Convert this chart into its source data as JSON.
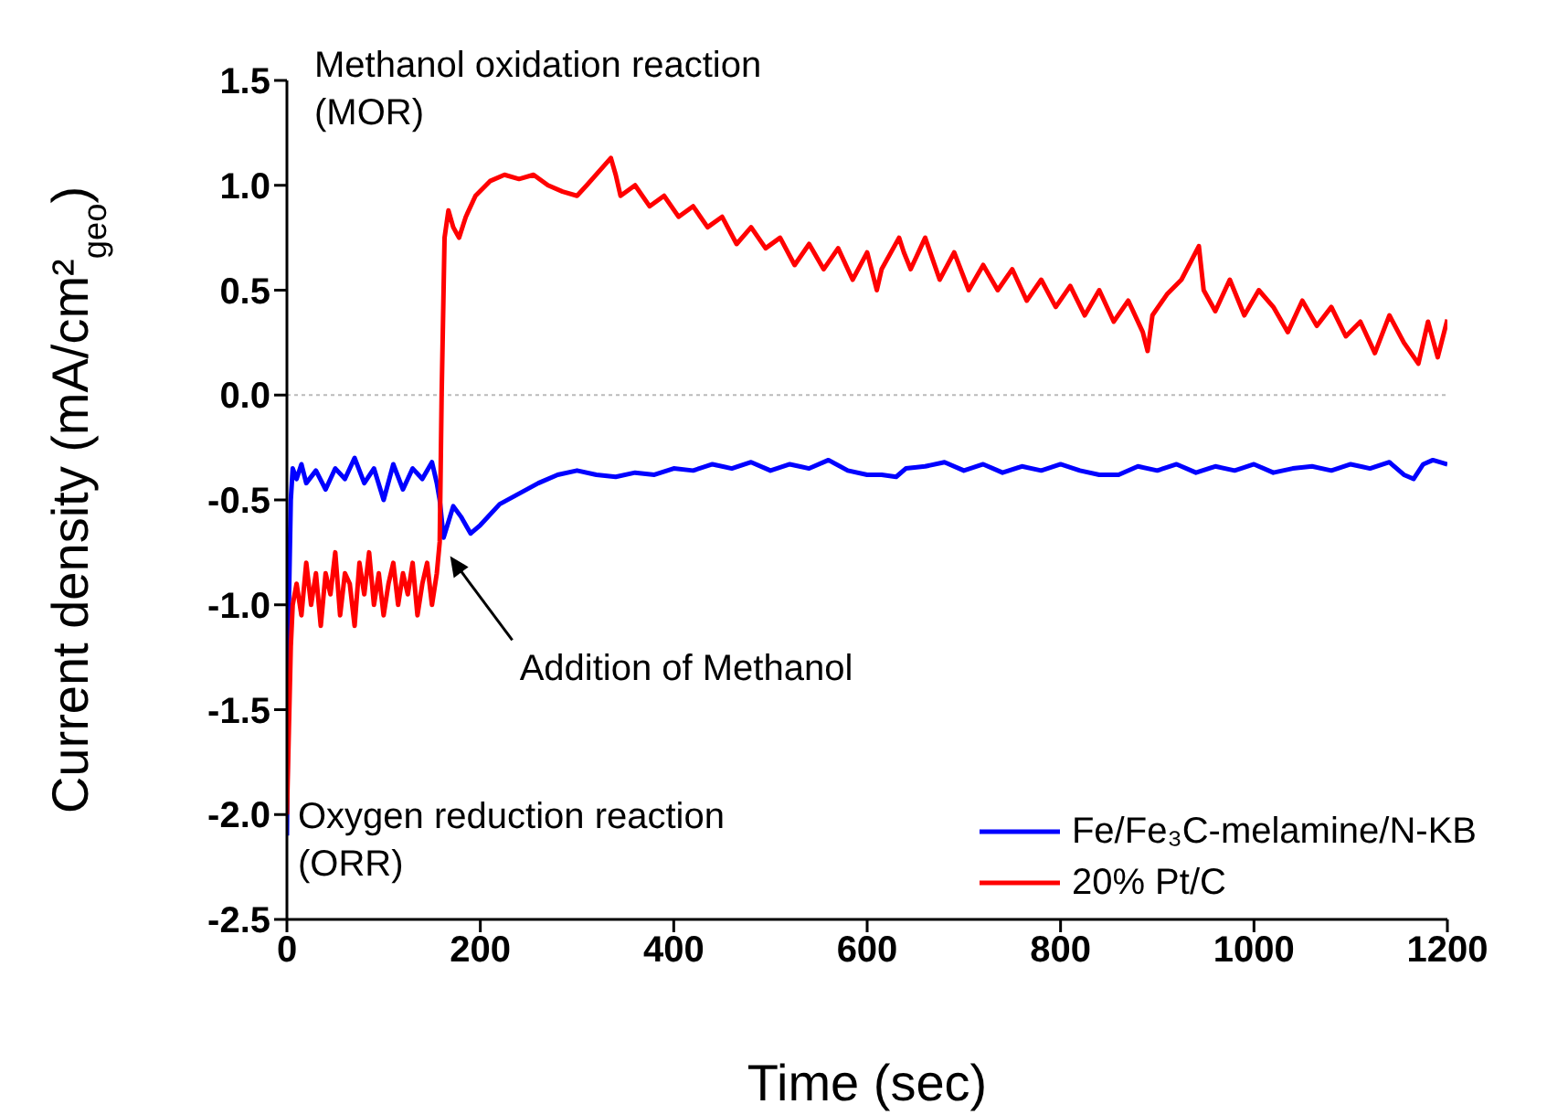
{
  "chart_data": {
    "type": "line",
    "xlabel": "Time (sec)",
    "ylabel": "Current density (mA/cm²$_{geo}$)",
    "xlim": [
      0,
      1200
    ],
    "xticks": [
      0,
      200,
      400,
      600,
      800,
      1000,
      1200
    ],
    "ylim": [
      -2.5,
      1.5
    ],
    "yticks": [
      {
        "value": -2.5,
        "label": "-2.5"
      },
      {
        "value": -2,
        "label": "-2.0"
      },
      {
        "value": -1.5,
        "label": "-1.5"
      },
      {
        "value": -1,
        "label": "-1.0"
      },
      {
        "value": -0.5,
        "label": "-0.5"
      },
      {
        "value": 0,
        "label": "0.0"
      },
      {
        "value": 0.5,
        "label": "0.5"
      },
      {
        "value": 1,
        "label": "1.0"
      },
      {
        "value": 1.5,
        "label": "1.5"
      }
    ],
    "grid": false,
    "legend": "bottom right",
    "marker": "none",
    "line_style": "solid",
    "ref_lines": [
      {
        "axis": "y",
        "value": 0,
        "color": "#bbbbbb",
        "line_style": "dotted"
      }
    ],
    "annotations": [
      "Methanol oxidation reaction\n(MOR)",
      {
        "text": "Addition of Methanol",
        "x": 165,
        "y": -0.75
      },
      "Oxygen reduction reaction\n(ORR)"
    ],
    "series": [
      {
        "name": "Fe/Fe₃C-melamine/N-KB",
        "color": "#0000ff",
        "x": [
          0,
          2,
          4,
          6,
          10,
          15,
          20,
          30,
          40,
          50,
          60,
          70,
          80,
          90,
          100,
          110,
          120,
          130,
          140,
          150,
          155,
          158,
          162,
          166,
          172,
          180,
          190,
          200,
          220,
          240,
          260,
          280,
          300,
          320,
          340,
          360,
          380,
          400,
          420,
          440,
          460,
          480,
          500,
          520,
          540,
          560,
          580,
          600,
          615,
          630,
          640,
          660,
          680,
          700,
          720,
          740,
          760,
          780,
          800,
          820,
          840,
          860,
          880,
          900,
          920,
          940,
          960,
          980,
          1000,
          1020,
          1040,
          1060,
          1080,
          1100,
          1120,
          1140,
          1155,
          1165,
          1175,
          1185,
          1200
        ],
        "values": [
          -2.1,
          -1.0,
          -0.5,
          -0.35,
          -0.4,
          -0.33,
          -0.42,
          -0.36,
          -0.45,
          -0.35,
          -0.4,
          -0.3,
          -0.42,
          -0.35,
          -0.5,
          -0.33,
          -0.45,
          -0.35,
          -0.4,
          -0.32,
          -0.42,
          -0.5,
          -0.68,
          -0.62,
          -0.53,
          -0.58,
          -0.66,
          -0.62,
          -0.52,
          -0.47,
          -0.42,
          -0.38,
          -0.36,
          -0.38,
          -0.39,
          -0.37,
          -0.38,
          -0.35,
          -0.36,
          -0.33,
          -0.35,
          -0.32,
          -0.36,
          -0.33,
          -0.35,
          -0.31,
          -0.36,
          -0.38,
          -0.38,
          -0.39,
          -0.35,
          -0.34,
          -0.32,
          -0.36,
          -0.33,
          -0.37,
          -0.34,
          -0.36,
          -0.33,
          -0.36,
          -0.38,
          -0.38,
          -0.34,
          -0.36,
          -0.33,
          -0.37,
          -0.34,
          -0.36,
          -0.33,
          -0.37,
          -0.35,
          -0.34,
          -0.36,
          -0.33,
          -0.35,
          -0.32,
          -0.38,
          -0.4,
          -0.33,
          -0.31,
          -0.33
        ]
      },
      {
        "name": "20% Pt/C",
        "color": "#ff0000",
        "x": [
          0,
          2,
          4,
          6,
          10,
          15,
          20,
          25,
          30,
          35,
          40,
          45,
          50,
          55,
          60,
          65,
          70,
          75,
          80,
          85,
          90,
          95,
          100,
          105,
          110,
          115,
          120,
          125,
          130,
          135,
          140,
          145,
          150,
          155,
          158,
          160,
          163,
          167,
          172,
          178,
          185,
          195,
          210,
          225,
          240,
          255,
          270,
          285,
          300,
          310,
          335,
          340,
          345,
          360,
          375,
          390,
          405,
          420,
          435,
          450,
          465,
          480,
          495,
          510,
          525,
          540,
          555,
          570,
          585,
          600,
          610,
          615,
          633,
          638,
          645,
          660,
          675,
          690,
          705,
          720,
          735,
          750,
          765,
          780,
          795,
          810,
          825,
          840,
          855,
          870,
          885,
          890,
          895,
          910,
          925,
          943,
          948,
          960,
          975,
          990,
          1005,
          1020,
          1035,
          1050,
          1065,
          1080,
          1095,
          1110,
          1125,
          1140,
          1155,
          1170,
          1180,
          1190,
          1200
        ],
        "values": [
          -2.0,
          -1.6,
          -1.2,
          -1.0,
          -0.9,
          -1.05,
          -0.8,
          -1.0,
          -0.85,
          -1.1,
          -0.85,
          -0.95,
          -0.75,
          -1.05,
          -0.85,
          -0.9,
          -1.1,
          -0.8,
          -0.95,
          -0.75,
          -1.0,
          -0.85,
          -1.05,
          -0.9,
          -0.8,
          -1.0,
          -0.85,
          -0.95,
          -0.8,
          -1.05,
          -0.9,
          -0.8,
          -1.0,
          -0.85,
          -0.7,
          0.0,
          0.75,
          0.88,
          0.8,
          0.75,
          0.85,
          0.95,
          1.02,
          1.05,
          1.03,
          1.05,
          1.0,
          0.97,
          0.95,
          1.0,
          1.13,
          1.05,
          0.95,
          1.0,
          0.9,
          0.95,
          0.85,
          0.9,
          0.8,
          0.85,
          0.72,
          0.8,
          0.7,
          0.75,
          0.62,
          0.72,
          0.6,
          0.7,
          0.55,
          0.68,
          0.5,
          0.6,
          0.75,
          0.68,
          0.6,
          0.75,
          0.55,
          0.68,
          0.5,
          0.62,
          0.5,
          0.6,
          0.45,
          0.55,
          0.42,
          0.52,
          0.38,
          0.5,
          0.35,
          0.45,
          0.3,
          0.21,
          0.38,
          0.48,
          0.55,
          0.71,
          0.5,
          0.4,
          0.55,
          0.38,
          0.5,
          0.42,
          0.3,
          0.45,
          0.33,
          0.42,
          0.28,
          0.35,
          0.2,
          0.38,
          0.25,
          0.15,
          0.35,
          0.18,
          0.36
        ]
      }
    ]
  }
}
